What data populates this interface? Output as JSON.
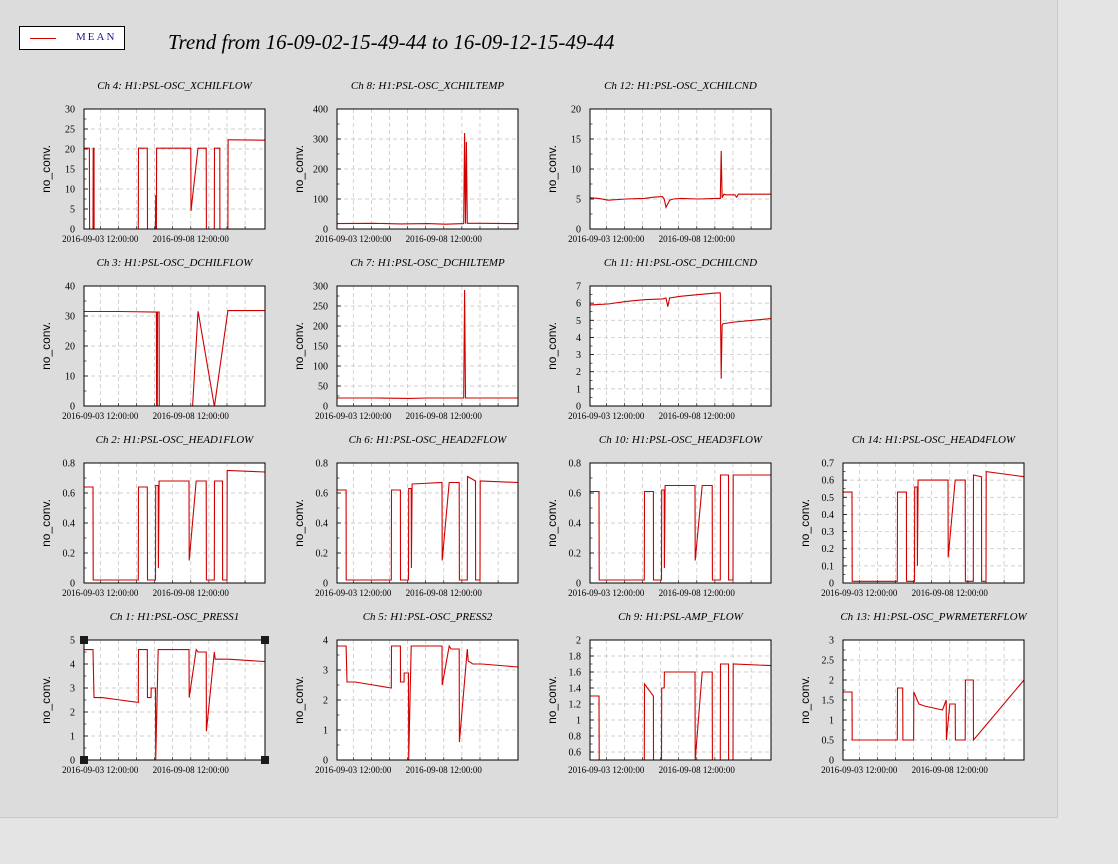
{
  "title": "Trend from 16-09-02-15-49-44 to 16-09-12-15-49-44",
  "legend": {
    "label": "MEAN",
    "color": "#d00000"
  },
  "chart_data": [
    {
      "type": "line",
      "title": "Ch 4: H1:PSL-OSC_XCHILFLOW",
      "ylabel": "no_conv.",
      "ylim": [
        0,
        30
      ],
      "yticks": [
        "0",
        "5",
        "10",
        "15",
        "20",
        "25",
        "30"
      ],
      "xticklabels": [
        "2016-09-03 12:00:00",
        "2016-09-08 12:00:00"
      ],
      "grid": true,
      "series": [
        {
          "name": "MEAN",
          "x": [
            0,
            0.3,
            0.31,
            0.5,
            0.51,
            0.55,
            0.56,
            3.0,
            3.01,
            3.5,
            3.51,
            3.95,
            3.96,
            4.0,
            4.01,
            4.05,
            4.06,
            5.9,
            5.91,
            6.3,
            6.31,
            6.75,
            6.76,
            7.2,
            7.21,
            7.5,
            7.51,
            7.95,
            7.96,
            8.0,
            8.01,
            10.0
          ],
          "y": [
            20.2,
            20.2,
            0,
            0,
            20.2,
            20.2,
            0,
            0,
            20.2,
            20.2,
            0,
            0,
            8.5,
            0,
            20.2,
            20.2,
            20.2,
            20.2,
            4.5,
            20.2,
            20.2,
            20.2,
            0,
            0,
            20.2,
            20.2,
            0,
            0,
            22.3,
            22.3,
            22.3,
            22.2
          ]
        }
      ]
    },
    {
      "type": "line",
      "title": "Ch 8: H1:PSL-OSC_XCHILTEMP",
      "ylabel": "no_conv.",
      "ylim": [
        0,
        400
      ],
      "yticks": [
        "0",
        "100",
        "200",
        "300",
        "400"
      ],
      "xticklabels": [
        "2016-09-03 12:00:00",
        "2016-09-08 12:00:00"
      ],
      "grid": true,
      "series": [
        {
          "name": "MEAN",
          "x": [
            0,
            2.0,
            3.5,
            5.0,
            6.0,
            7.0,
            7.05,
            7.1,
            7.15,
            7.2,
            8.0,
            10.0
          ],
          "y": [
            18,
            19,
            17,
            18,
            16,
            18,
            320,
            18,
            290,
            19,
            19,
            18
          ]
        }
      ]
    },
    {
      "type": "line",
      "title": "Ch 12: H1:PSL-OSC_XCHILCND",
      "ylabel": "no_conv.",
      "ylim": [
        0,
        20
      ],
      "yticks": [
        "0",
        "5",
        "10",
        "15",
        "20"
      ],
      "xticklabels": [
        "2016-09-03 12:00:00",
        "2016-09-08 12:00:00"
      ],
      "grid": true,
      "series": [
        {
          "name": "MEAN",
          "x": [
            0,
            0.5,
            1.0,
            2.0,
            3.0,
            3.5,
            4.0,
            4.1,
            4.2,
            4.4,
            4.6,
            5.0,
            6.0,
            7.0,
            7.2,
            7.25,
            7.3,
            7.4,
            7.5,
            8.0,
            8.1,
            8.2,
            9.0,
            10.0
          ],
          "y": [
            5.2,
            5.1,
            4.8,
            5.0,
            5.1,
            5.3,
            5.4,
            5.0,
            3.6,
            4.8,
            5.0,
            5.1,
            5.0,
            5.1,
            5.1,
            13.0,
            5.2,
            5.8,
            5.7,
            5.7,
            5.3,
            5.8,
            5.8,
            5.8
          ]
        }
      ]
    },
    {
      "type": "line",
      "title": "Ch 3: H1:PSL-OSC_DCHILFLOW",
      "ylabel": "no_conv.",
      "ylim": [
        0,
        40
      ],
      "yticks": [
        "0",
        "10",
        "20",
        "30",
        "40"
      ],
      "xticklabels": [
        "2016-09-03 12:00:00",
        "2016-09-08 12:00:00"
      ],
      "grid": true,
      "series": [
        {
          "name": "MEAN",
          "x": [
            0,
            2.0,
            4.0,
            4.01,
            4.05,
            4.06,
            4.15,
            4.16,
            6.0,
            6.3,
            6.31,
            7.2,
            7.21,
            7.95,
            7.96,
            10.0
          ],
          "y": [
            31.5,
            31.5,
            31.3,
            0,
            0,
            31.3,
            31.3,
            0,
            0,
            31.4,
            31.4,
            0,
            0,
            31.8,
            31.8,
            31.8
          ]
        }
      ]
    },
    {
      "type": "line",
      "title": "Ch 7: H1:PSL-OSC_DCHILTEMP",
      "ylabel": "no_conv.",
      "ylim": [
        0,
        300
      ],
      "yticks": [
        "0",
        "50",
        "100",
        "150",
        "200",
        "250",
        "300"
      ],
      "xticklabels": [
        "2016-09-03 12:00:00",
        "2016-09-08 12:00:00"
      ],
      "grid": true,
      "series": [
        {
          "name": "MEAN",
          "x": [
            0,
            2.0,
            4.0,
            5.0,
            7.0,
            7.05,
            7.1,
            8.0,
            10.0
          ],
          "y": [
            20,
            20,
            19,
            20,
            20,
            290,
            20,
            20,
            20
          ]
        }
      ]
    },
    {
      "type": "line",
      "title": "Ch 11: H1:PSL-OSC_DCHILCND",
      "ylabel": "no_conv.",
      "ylim": [
        0,
        7
      ],
      "yticks": [
        "0",
        "1",
        "2",
        "3",
        "4",
        "5",
        "6",
        "7"
      ],
      "xticklabels": [
        "2016-09-03 12:00:00",
        "2016-09-08 12:00:00"
      ],
      "grid": true,
      "series": [
        {
          "name": "MEAN",
          "x": [
            0,
            1.0,
            2.0,
            3.0,
            4.0,
            4.2,
            4.3,
            4.4,
            5.0,
            6.0,
            7.0,
            7.2,
            7.25,
            7.3,
            7.35,
            8.0,
            9.0,
            10.0
          ],
          "y": [
            5.9,
            5.95,
            6.1,
            6.2,
            6.25,
            6.3,
            5.8,
            6.3,
            6.4,
            6.5,
            6.6,
            6.6,
            1.6,
            4.7,
            4.8,
            4.9,
            5.0,
            5.1
          ]
        }
      ]
    },
    {
      "type": "line",
      "title": "Ch 2: H1:PSL-OSC_HEAD1FLOW",
      "ylabel": "no_conv.",
      "ylim": [
        0,
        0.8
      ],
      "yticks": [
        "0",
        "0.2",
        "0.4",
        "0.6",
        "0.8"
      ],
      "xticklabels": [
        "2016-09-03 12:00:00",
        "2016-09-08 12:00:00"
      ],
      "grid": true,
      "series": [
        {
          "name": "MEAN",
          "x": [
            0,
            0.5,
            0.51,
            0.55,
            0.56,
            3.0,
            3.01,
            3.5,
            3.51,
            3.95,
            3.96,
            4.1,
            4.11,
            4.15,
            4.16,
            5.8,
            5.81,
            6.2,
            6.21,
            6.75,
            6.76,
            7.2,
            7.21,
            7.65,
            7.66,
            7.9,
            7.91,
            10.0
          ],
          "y": [
            0.64,
            0.64,
            0.02,
            0.02,
            0.02,
            0.02,
            0.64,
            0.64,
            0.02,
            0.02,
            0.65,
            0.65,
            0.1,
            0.68,
            0.68,
            0.68,
            0.15,
            0.68,
            0.68,
            0.68,
            0.02,
            0.02,
            0.68,
            0.68,
            0.02,
            0.02,
            0.75,
            0.74
          ]
        }
      ]
    },
    {
      "type": "line",
      "title": "Ch 6: H1:PSL-OSC_HEAD2FLOW",
      "ylabel": "no_conv.",
      "ylim": [
        0,
        0.8
      ],
      "yticks": [
        "0",
        "0.2",
        "0.4",
        "0.6",
        "0.8"
      ],
      "xticklabels": [
        "2016-09-03 12:00:00",
        "2016-09-08 12:00:00"
      ],
      "grid": true,
      "series": [
        {
          "name": "MEAN",
          "x": [
            0,
            0.5,
            0.51,
            0.55,
            0.56,
            3.0,
            3.01,
            3.5,
            3.51,
            3.95,
            3.96,
            4.1,
            4.11,
            4.15,
            4.16,
            5.8,
            5.81,
            6.2,
            6.21,
            6.75,
            6.76,
            7.2,
            7.21,
            7.65,
            7.66,
            7.9,
            7.91,
            10.0
          ],
          "y": [
            0.62,
            0.62,
            0.02,
            0.02,
            0.02,
            0.02,
            0.62,
            0.62,
            0.02,
            0.02,
            0.63,
            0.63,
            0.1,
            0.66,
            0.66,
            0.67,
            0.15,
            0.67,
            0.67,
            0.67,
            0.02,
            0.02,
            0.71,
            0.68,
            0.02,
            0.02,
            0.68,
            0.67
          ]
        }
      ]
    },
    {
      "type": "line",
      "title": "Ch 10: H1:PSL-OSC_HEAD3FLOW",
      "ylabel": "no_conv.",
      "ylim": [
        0,
        0.8
      ],
      "yticks": [
        "0",
        "0.2",
        "0.4",
        "0.6",
        "0.8"
      ],
      "xticklabels": [
        "2016-09-03 12:00:00",
        "2016-09-08 12:00:00"
      ],
      "grid": true,
      "series": [
        {
          "name": "MEAN",
          "x": [
            0,
            0.5,
            0.51,
            0.55,
            0.56,
            3.0,
            3.01,
            3.5,
            3.51,
            3.95,
            3.96,
            4.1,
            4.11,
            4.15,
            4.16,
            5.8,
            5.81,
            6.2,
            6.21,
            6.75,
            6.76,
            7.2,
            7.21,
            7.65,
            7.66,
            7.9,
            7.91,
            10.0
          ],
          "y": [
            0.61,
            0.61,
            0.02,
            0.02,
            0.02,
            0.02,
            0.61,
            0.61,
            0.02,
            0.02,
            0.62,
            0.62,
            0.1,
            0.65,
            0.65,
            0.65,
            0.15,
            0.65,
            0.65,
            0.65,
            0.02,
            0.02,
            0.72,
            0.72,
            0.02,
            0.02,
            0.72,
            0.72
          ]
        }
      ]
    },
    {
      "type": "line",
      "title": "Ch 14: H1:PSL-OSC_HEAD4FLOW",
      "ylabel": "no_conv.",
      "ylim": [
        0,
        0.7
      ],
      "yticks": [
        "0",
        "0.1",
        "0.2",
        "0.3",
        "0.4",
        "0.5",
        "0.6",
        "0.7"
      ],
      "xticklabels": [
        "2016-09-03 12:00:00",
        "2016-09-08 12:00:00"
      ],
      "grid": true,
      "series": [
        {
          "name": "MEAN",
          "x": [
            0,
            0.5,
            0.51,
            0.55,
            0.56,
            3.0,
            3.01,
            3.5,
            3.51,
            3.95,
            3.96,
            4.1,
            4.11,
            4.15,
            4.16,
            5.8,
            5.81,
            6.2,
            6.21,
            6.75,
            6.76,
            7.2,
            7.21,
            7.65,
            7.66,
            7.9,
            7.91,
            10.0
          ],
          "y": [
            0.53,
            0.53,
            0.01,
            0.01,
            0.01,
            0.01,
            0.53,
            0.53,
            0.01,
            0.01,
            0.56,
            0.56,
            0.1,
            0.6,
            0.6,
            0.6,
            0.15,
            0.6,
            0.6,
            0.6,
            0.01,
            0.01,
            0.63,
            0.62,
            0.01,
            0.01,
            0.65,
            0.62
          ]
        }
      ]
    },
    {
      "type": "line",
      "title": "Ch 1: H1:PSL-OSC_PRESS1",
      "ylabel": "no_conv.",
      "ylim": [
        0,
        5
      ],
      "yticks": [
        "0",
        "1",
        "2",
        "3",
        "4",
        "5"
      ],
      "xticklabels": [
        "2016-09-03 12:00:00",
        "2016-09-08 12:00:00"
      ],
      "grid": true,
      "series": [
        {
          "name": "MEAN",
          "x": [
            0,
            0.5,
            0.55,
            1.0,
            2.0,
            3.0,
            3.01,
            3.5,
            3.51,
            3.7,
            3.71,
            3.95,
            3.96,
            4.1,
            4.11,
            4.5,
            5.0,
            5.8,
            5.81,
            6.2,
            6.3,
            6.75,
            6.76,
            7.2,
            7.25,
            7.5,
            8.0,
            10.0
          ],
          "y": [
            4.6,
            4.6,
            2.6,
            2.6,
            2.5,
            2.4,
            4.6,
            4.6,
            2.6,
            2.6,
            3.0,
            3.0,
            0,
            4.6,
            4.6,
            4.6,
            4.6,
            4.6,
            2.6,
            4.6,
            4.5,
            4.5,
            1.2,
            4.5,
            4.2,
            4.2,
            4.2,
            4.1
          ]
        }
      ]
    },
    {
      "type": "line",
      "title": "Ch 5: H1:PSL-OSC_PRESS2",
      "ylabel": "no_conv.",
      "ylim": [
        0,
        4
      ],
      "yticks": [
        "0",
        "1",
        "2",
        "3",
        "4"
      ],
      "xticklabels": [
        "2016-09-03 12:00:00",
        "2016-09-08 12:00:00"
      ],
      "grid": true,
      "series": [
        {
          "name": "MEAN",
          "x": [
            0,
            0.5,
            0.55,
            1.0,
            2.0,
            3.0,
            3.01,
            3.5,
            3.51,
            3.7,
            3.71,
            3.95,
            3.96,
            4.1,
            4.11,
            4.5,
            5.0,
            5.8,
            5.81,
            6.2,
            6.3,
            6.75,
            6.76,
            7.2,
            7.25,
            7.5,
            8.0,
            10.0
          ],
          "y": [
            3.8,
            3.8,
            2.6,
            2.6,
            2.5,
            2.4,
            3.8,
            3.8,
            2.6,
            2.6,
            2.9,
            2.9,
            0,
            3.8,
            3.8,
            3.8,
            3.8,
            3.8,
            2.5,
            3.8,
            3.7,
            3.7,
            0.6,
            3.7,
            3.3,
            3.2,
            3.2,
            3.1
          ]
        }
      ]
    },
    {
      "type": "line",
      "title": "Ch 9: H1:PSL-AMP_FLOW",
      "ylabel": "no_conv.",
      "ylim": [
        0.5,
        2
      ],
      "yticks": [
        "0.6",
        "0.8",
        "1",
        "1.2",
        "1.4",
        "1.6",
        "1.8",
        "2"
      ],
      "xticklabels": [
        "2016-09-03 12:00:00",
        "2016-09-08 12:00:00"
      ],
      "grid": true,
      "series": [
        {
          "name": "MEAN",
          "x": [
            0,
            0.5,
            0.51,
            3.0,
            3.01,
            3.5,
            3.51,
            3.95,
            3.96,
            4.1,
            4.11,
            5.8,
            5.81,
            6.2,
            6.21,
            6.75,
            6.76,
            7.2,
            7.21,
            7.65,
            7.66,
            7.9,
            7.91,
            10.0
          ],
          "y": [
            1.3,
            1.3,
            0.5,
            0.5,
            1.45,
            1.3,
            0.5,
            0.5,
            1.4,
            1.4,
            1.6,
            1.6,
            0.5,
            1.6,
            1.6,
            1.6,
            0.5,
            0.5,
            1.7,
            1.7,
            0.5,
            0.5,
            1.7,
            1.68
          ]
        }
      ]
    },
    {
      "type": "line",
      "title": "Ch 13: H1:PSL-OSC_PWRMETERFLOW",
      "ylabel": "no_conv.",
      "ylim": [
        0,
        3
      ],
      "yticks": [
        "0",
        "0.5",
        "1",
        "1.5",
        "2",
        "2.5",
        "3"
      ],
      "xticklabels": [
        "2016-09-03 12:00:00",
        "2016-09-08 12:00:00"
      ],
      "grid": true,
      "series": [
        {
          "name": "MEAN",
          "x": [
            0,
            0.5,
            0.51,
            1.0,
            3.0,
            3.01,
            3.3,
            3.31,
            3.9,
            3.91,
            4.1,
            4.2,
            4.5,
            5.0,
            5.5,
            5.7,
            5.71,
            5.9,
            6.2,
            6.21,
            6.75,
            6.76,
            7.2,
            7.21,
            10.0
          ],
          "y": [
            1.7,
            1.7,
            0.5,
            0.5,
            0.5,
            1.8,
            1.8,
            0.5,
            0.5,
            1.7,
            1.5,
            1.4,
            1.35,
            1.3,
            1.25,
            1.5,
            0.5,
            1.4,
            1.4,
            0.5,
            0.5,
            2.0,
            2.0,
            0.5,
            2.0
          ]
        }
      ]
    }
  ]
}
